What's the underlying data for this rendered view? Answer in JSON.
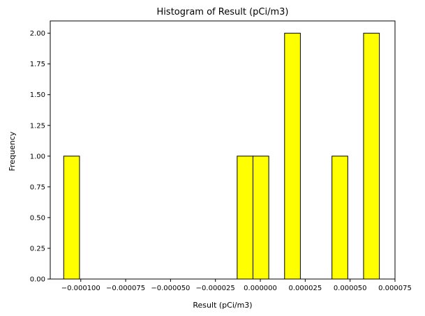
{
  "chart_data": {
    "type": "bar",
    "title": "Histogram of Result (pCi/m3)",
    "xlabel": "Result (pCi/m3)",
    "ylabel": "Frequency",
    "bar_color": "#ffff00",
    "edge_color": "#000000",
    "bin_width": 8.8e-06,
    "xlim": [
      -0.000117,
      7.5e-05
    ],
    "ylim": [
      0,
      2.1
    ],
    "bins": [
      {
        "x_start": -0.0001095,
        "x_end": -0.0001007,
        "count": 1
      },
      {
        "x_start": -1.29e-05,
        "x_end": -4.1e-06,
        "count": 1
      },
      {
        "x_start": -4.1e-06,
        "x_end": 4.7e-06,
        "count": 1
      },
      {
        "x_start": 1.35e-05,
        "x_end": 2.23e-05,
        "count": 2
      },
      {
        "x_start": 3.99e-05,
        "x_end": 4.87e-05,
        "count": 1
      },
      {
        "x_start": 5.75e-05,
        "x_end": 6.63e-05,
        "count": 2
      }
    ],
    "x_ticks": [
      {
        "value": -0.0001,
        "label": "−0.000100"
      },
      {
        "value": -7.5e-05,
        "label": "−0.000075"
      },
      {
        "value": -5e-05,
        "label": "−0.000050"
      },
      {
        "value": -2.5e-05,
        "label": "−0.000025"
      },
      {
        "value": 0,
        "label": "0.000000"
      },
      {
        "value": 2.5e-05,
        "label": "0.000025"
      },
      {
        "value": 5e-05,
        "label": "0.000050"
      },
      {
        "value": 7.5e-05,
        "label": "0.000075"
      }
    ],
    "y_ticks": [
      {
        "value": 0.0,
        "label": "0.00"
      },
      {
        "value": 0.25,
        "label": "0.25"
      },
      {
        "value": 0.5,
        "label": "0.50"
      },
      {
        "value": 0.75,
        "label": "0.75"
      },
      {
        "value": 1.0,
        "label": "1.00"
      },
      {
        "value": 1.25,
        "label": "1.25"
      },
      {
        "value": 1.5,
        "label": "1.50"
      },
      {
        "value": 1.75,
        "label": "1.75"
      },
      {
        "value": 2.0,
        "label": "2.00"
      }
    ],
    "grid": false,
    "legend": "none"
  }
}
